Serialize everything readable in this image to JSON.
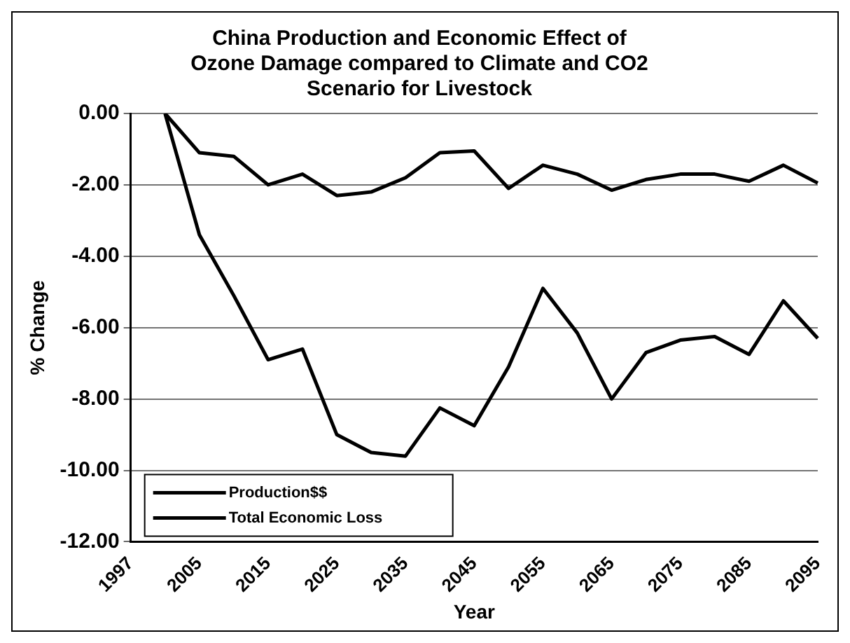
{
  "chart_data": {
    "type": "line",
    "title": "China Production and Economic Effect of Ozone Damage compared to Climate and CO2 Scenario for Livestock",
    "xlabel": "Year",
    "ylabel": "% Change",
    "categories": [
      "1997",
      null,
      "2005",
      null,
      "2015",
      null,
      "2025",
      null,
      "2035",
      null,
      "2045",
      null,
      "2055",
      null,
      "2065",
      null,
      "2075",
      null,
      "2085",
      null,
      "2095"
    ],
    "series": [
      {
        "name": "Production$$",
        "color": "#000000",
        "values": [
          null,
          0,
          -1.1,
          -1.2,
          -2.0,
          -1.7,
          -2.3,
          -2.2,
          -1.8,
          -1.1,
          -1.05,
          -2.1,
          -1.45,
          -1.7,
          -2.15,
          -1.85,
          -1.7,
          -1.7,
          -1.9,
          -1.45,
          -1.95
        ]
      },
      {
        "name": "Total Economic Loss",
        "color": "#000000",
        "values": [
          null,
          0,
          -3.4,
          -5.1,
          -6.9,
          -6.6,
          -9.0,
          -9.5,
          -9.6,
          -8.25,
          -8.75,
          -7.1,
          -4.9,
          -6.15,
          -8.0,
          -6.7,
          -6.35,
          -6.25,
          -6.75,
          -5.25,
          -6.3
        ]
      }
    ],
    "ylim": [
      -12,
      0
    ],
    "yticks": [
      {
        "value": 0,
        "label": "0.00"
      },
      {
        "value": -2,
        "label": "-2.00"
      },
      {
        "value": -4,
        "label": "-4.00"
      },
      {
        "value": -6,
        "label": "-6.00"
      },
      {
        "value": -8,
        "label": "-8.00"
      },
      {
        "value": -10,
        "label": "-10.00"
      },
      {
        "value": -12,
        "label": "-12.00"
      }
    ],
    "grid": "y",
    "legend": "bottom left",
    "marker": "none",
    "line_style": "solid"
  }
}
